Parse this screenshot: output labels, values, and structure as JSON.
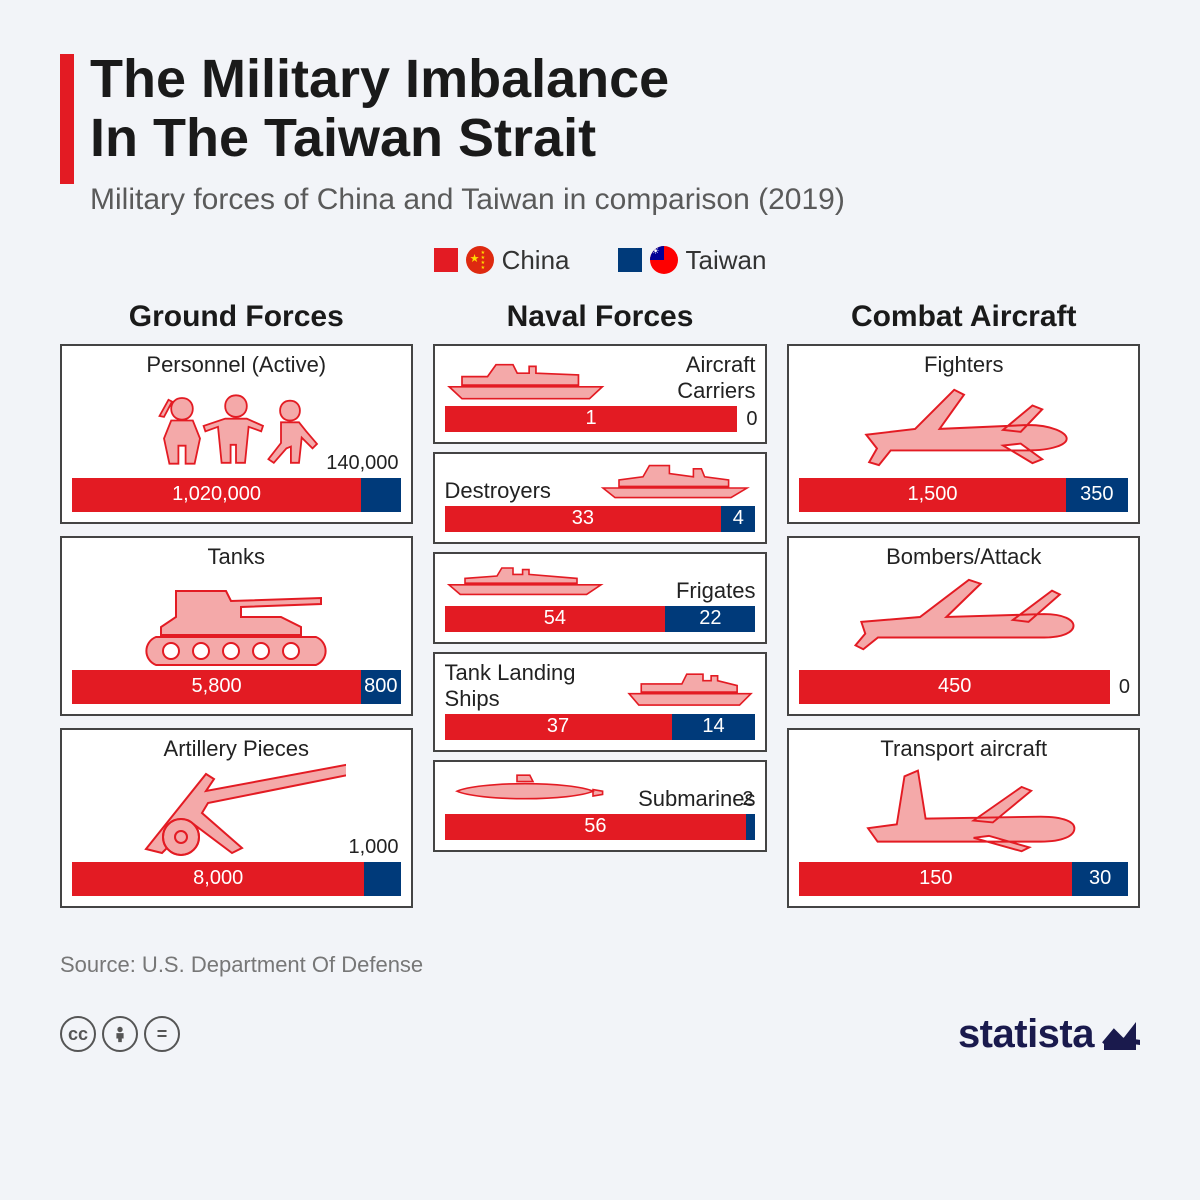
{
  "title": "The Military Imbalance\nIn The Taiwan Strait",
  "subtitle": "Military forces of China and Taiwan in comparison (2019)",
  "colors": {
    "china": "#e31b23",
    "taiwan": "#003a7a",
    "icon_fill": "#f4a9a9",
    "icon_stroke": "#e31b23",
    "background": "#f2f4f8",
    "card_border": "#444444",
    "text": "#1a1a1a",
    "source_text": "#777777"
  },
  "legend": [
    {
      "label": "China",
      "color": "#e31b23",
      "flag": "china"
    },
    {
      "label": "Taiwan",
      "color": "#003a7a",
      "flag": "taiwan"
    }
  ],
  "sections": {
    "ground": {
      "title": "Ground Forces"
    },
    "naval": {
      "title": "Naval Forces"
    },
    "air": {
      "title": "Combat Aircraft"
    }
  },
  "items": {
    "personnel": {
      "label": "Personnel (Active)",
      "a": "1,020,000",
      "b": "140,000",
      "a_pct": 88,
      "b_pct": 12,
      "b_outside": true,
      "b_top": true
    },
    "tanks": {
      "label": "Tanks",
      "a": "5,800",
      "b": "800",
      "a_pct": 88,
      "b_pct": 12
    },
    "artillery": {
      "label": "Artillery Pieces",
      "a": "8,000",
      "b": "1,000",
      "a_pct": 89,
      "b_pct": 11,
      "b_outside": true,
      "b_top": true
    },
    "carriers": {
      "label": "Aircraft Carriers",
      "a": "1",
      "b": "0",
      "a_pct": 100,
      "b_pct": 0,
      "b_outside": true
    },
    "destroyers": {
      "label": "Destroyers",
      "a": "33",
      "b": "4",
      "a_pct": 89,
      "b_pct": 11
    },
    "frigates": {
      "label": "Frigates",
      "a": "54",
      "b": "22",
      "a_pct": 71,
      "b_pct": 29
    },
    "landing": {
      "label": "Tank Landing Ships",
      "a": "37",
      "b": "14",
      "a_pct": 73,
      "b_pct": 27
    },
    "subs": {
      "label": "Submarines",
      "a": "56",
      "b": "2",
      "a_pct": 97,
      "b_pct": 3,
      "b_outside": true,
      "b_top": true
    },
    "fighters": {
      "label": "Fighters",
      "a": "1,500",
      "b": "350",
      "a_pct": 81,
      "b_pct": 19
    },
    "bombers": {
      "label": "Bombers/Attack",
      "a": "450",
      "b": "0",
      "a_pct": 100,
      "b_pct": 0,
      "b_outside": true
    },
    "transport": {
      "label": "Transport aircraft",
      "a": "150",
      "b": "30",
      "a_pct": 83,
      "b_pct": 17
    }
  },
  "source": "Source: U.S. Department Of Defense",
  "brand": "statista",
  "license": [
    "cc",
    "by",
    "nd"
  ],
  "chart_style": {
    "type": "infographic-bars",
    "bar_height_large": 34,
    "bar_height_small": 26,
    "title_fontsize": 54,
    "subtitle_fontsize": 30,
    "section_fontsize": 30,
    "label_fontsize": 22,
    "value_fontsize": 20
  }
}
